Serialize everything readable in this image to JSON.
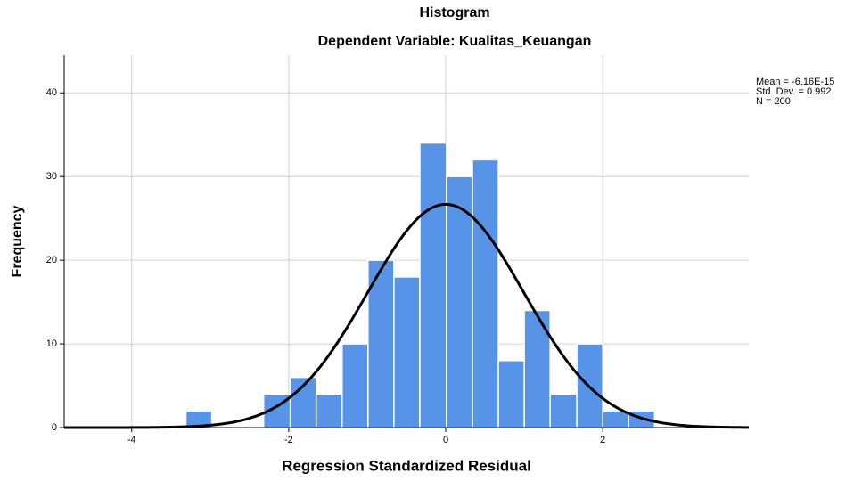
{
  "chart_data": {
    "type": "histogram",
    "title": "Histogram",
    "subtitle": "Dependent Variable: Kualitas_Keuangan",
    "x_label": "Regression Standardized Residual",
    "y_label": "Frequency",
    "bins": [
      -3.31,
      -2.98,
      -2.65,
      -2.32,
      -1.98,
      -1.65,
      -1.32,
      -0.99,
      -0.66,
      -0.33,
      0.01,
      0.34,
      0.67,
      1.0,
      1.33,
      1.67,
      2.0,
      2.33,
      2.66
    ],
    "values": [
      2,
      0,
      0,
      4,
      6,
      4,
      10,
      20,
      18,
      34,
      30,
      32,
      8,
      14,
      4,
      10,
      2,
      2
    ],
    "color": "#5793e6",
    "curve_color": "#000000",
    "stats": [
      {
        "value": -6.16e-15,
        "label": "Mean = -6.16E-15"
      },
      {
        "value": 0.992,
        "label": "Std. Dev. = 0.992"
      },
      {
        "value": 200,
        "label": "N = 200"
      }
    ],
    "xlim": [
      -4.86,
      3.86
    ],
    "ylim": [
      0,
      44.5
    ],
    "xticks": [
      -4,
      -2,
      0,
      2
    ],
    "yticks": [
      0,
      10,
      20,
      30,
      40
    ],
    "grid": true
  }
}
